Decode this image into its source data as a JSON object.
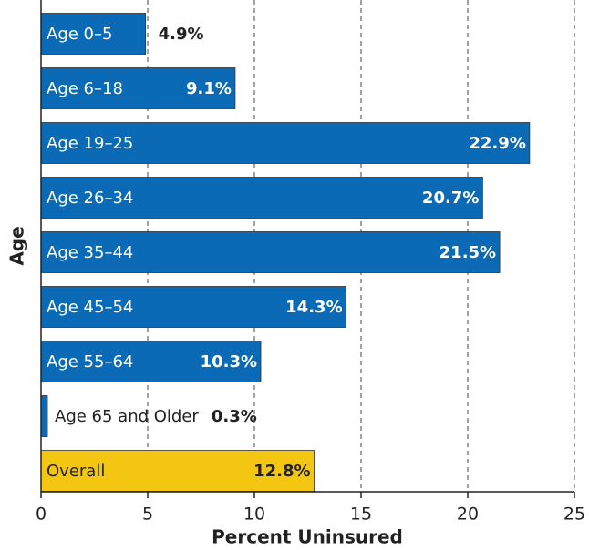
{
  "chart_data": {
    "type": "bar",
    "orientation": "horizontal",
    "xlabel": "Percent Uninsured",
    "ylabel": "Age",
    "categories": [
      "Age 0–5",
      "Age 6–18",
      "Age 19–25",
      "Age 26–34",
      "Age 35–44",
      "Age 45–54",
      "Age 55–64",
      "Age 65 and Older",
      "Overall"
    ],
    "values": [
      4.9,
      9.1,
      22.9,
      20.7,
      21.5,
      14.3,
      10.3,
      0.3,
      12.8
    ],
    "value_labels": [
      "4.9%",
      "9.1%",
      "22.9%",
      "20.7%",
      "21.5%",
      "14.3%",
      "10.3%",
      "0.3%",
      "12.8%"
    ],
    "colors": [
      "#0a6ab5",
      "#0a6ab5",
      "#0a6ab5",
      "#0a6ab5",
      "#0a6ab5",
      "#0a6ab5",
      "#0a6ab5",
      "#0a6ab5",
      "#f3c711"
    ],
    "xlim": [
      0,
      25
    ],
    "xticks": [
      0,
      5,
      10,
      15,
      20,
      25
    ],
    "grid": true
  }
}
